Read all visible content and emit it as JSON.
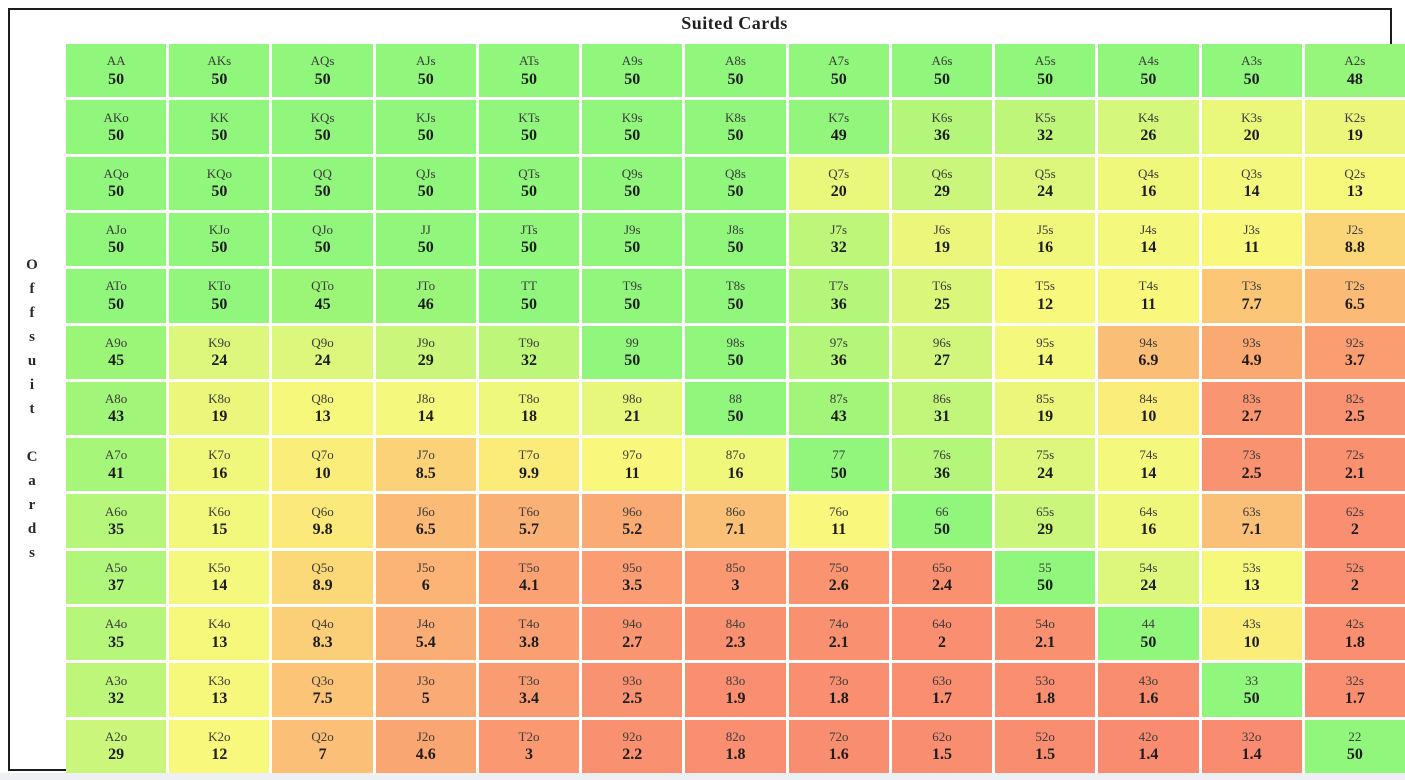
{
  "header": {
    "title": "Suited Cards"
  },
  "side": {
    "label": "Offsuit Cards"
  },
  "text_colors": {
    "hand_label": "#3c3c3c",
    "hand_value": "#1c1c1c",
    "title": "#1f1f1f"
  },
  "chart_data": {
    "type": "heatmap",
    "title": "Suited Cards",
    "row_axis_label": "Offsuit Cards",
    "layout_note": "13x13 poker hand matrix; suited hands upper-right, offsuit lower-left, pairs on diagonal; each cell shows hand name and value",
    "hands": [
      [
        "AA",
        "AKs",
        "AQs",
        "AJs",
        "ATs",
        "A9s",
        "A8s",
        "A7s",
        "A6s",
        "A5s",
        "A4s",
        "A3s",
        "A2s"
      ],
      [
        "AKo",
        "KK",
        "KQs",
        "KJs",
        "KTs",
        "K9s",
        "K8s",
        "K7s",
        "K6s",
        "K5s",
        "K4s",
        "K3s",
        "K2s"
      ],
      [
        "AQo",
        "KQo",
        "QQ",
        "QJs",
        "QTs",
        "Q9s",
        "Q8s",
        "Q7s",
        "Q6s",
        "Q5s",
        "Q4s",
        "Q3s",
        "Q2s"
      ],
      [
        "AJo",
        "KJo",
        "QJo",
        "JJ",
        "JTs",
        "J9s",
        "J8s",
        "J7s",
        "J6s",
        "J5s",
        "J4s",
        "J3s",
        "J2s"
      ],
      [
        "ATo",
        "KTo",
        "QTo",
        "JTo",
        "TT",
        "T9s",
        "T8s",
        "T7s",
        "T6s",
        "T5s",
        "T4s",
        "T3s",
        "T2s"
      ],
      [
        "A9o",
        "K9o",
        "Q9o",
        "J9o",
        "T9o",
        "99",
        "98s",
        "97s",
        "96s",
        "95s",
        "94s",
        "93s",
        "92s"
      ],
      [
        "A8o",
        "K8o",
        "Q8o",
        "J8o",
        "T8o",
        "98o",
        "88",
        "87s",
        "86s",
        "85s",
        "84s",
        "83s",
        "82s"
      ],
      [
        "A7o",
        "K7o",
        "Q7o",
        "J7o",
        "T7o",
        "97o",
        "87o",
        "77",
        "76s",
        "75s",
        "74s",
        "73s",
        "72s"
      ],
      [
        "A6o",
        "K6o",
        "Q6o",
        "J6o",
        "T6o",
        "96o",
        "86o",
        "76o",
        "66",
        "65s",
        "64s",
        "63s",
        "62s"
      ],
      [
        "A5o",
        "K5o",
        "Q5o",
        "J5o",
        "T5o",
        "95o",
        "85o",
        "75o",
        "65o",
        "55",
        "54s",
        "53s",
        "52s"
      ],
      [
        "A4o",
        "K4o",
        "Q4o",
        "J4o",
        "T4o",
        "94o",
        "84o",
        "74o",
        "64o",
        "54o",
        "44",
        "43s",
        "42s"
      ],
      [
        "A3o",
        "K3o",
        "Q3o",
        "J3o",
        "T3o",
        "93o",
        "83o",
        "73o",
        "63o",
        "53o",
        "43o",
        "33",
        "32s"
      ],
      [
        "A2o",
        "K2o",
        "Q2o",
        "J2o",
        "T2o",
        "92o",
        "82o",
        "72o",
        "62o",
        "52o",
        "42o",
        "32o",
        "22"
      ]
    ],
    "values": [
      [
        50,
        50,
        50,
        50,
        50,
        50,
        50,
        50,
        50,
        50,
        50,
        50,
        48
      ],
      [
        50,
        50,
        50,
        50,
        50,
        50,
        50,
        49,
        36,
        32,
        26,
        20,
        19
      ],
      [
        50,
        50,
        50,
        50,
        50,
        50,
        50,
        20,
        29,
        24,
        16,
        14,
        13
      ],
      [
        50,
        50,
        50,
        50,
        50,
        50,
        50,
        32,
        19,
        16,
        14,
        11,
        8.8
      ],
      [
        50,
        50,
        45,
        46,
        50,
        50,
        50,
        36,
        25,
        12,
        11,
        7.7,
        6.5
      ],
      [
        45,
        24,
        24,
        29,
        32,
        50,
        50,
        36,
        27,
        14,
        6.9,
        4.9,
        3.7
      ],
      [
        43,
        19,
        13,
        14,
        18,
        21,
        50,
        43,
        31,
        19,
        10,
        2.7,
        2.5
      ],
      [
        41,
        16,
        10,
        8.5,
        9.9,
        11,
        16,
        50,
        36,
        24,
        14,
        2.5,
        2.1
      ],
      [
        35,
        15,
        9.8,
        6.5,
        5.7,
        5.2,
        7.1,
        11,
        50,
        29,
        16,
        7.1,
        2
      ],
      [
        37,
        14,
        8.9,
        6,
        4.1,
        3.5,
        3,
        2.6,
        2.4,
        50,
        24,
        13,
        2
      ],
      [
        35,
        13,
        8.3,
        5.4,
        3.8,
        2.7,
        2.3,
        2.1,
        2,
        2.1,
        50,
        10,
        1.8
      ],
      [
        32,
        13,
        7.5,
        5,
        3.4,
        2.5,
        1.9,
        1.8,
        1.7,
        1.8,
        1.6,
        50,
        1.7
      ],
      [
        29,
        12,
        7,
        4.6,
        3,
        2.2,
        1.8,
        1.6,
        1.5,
        1.5,
        1.4,
        1.4,
        50
      ]
    ],
    "color_scale": [
      {
        "v": 1.4,
        "hex": "#f98c70"
      },
      {
        "v": 2.0,
        "hex": "#f98f70"
      },
      {
        "v": 2.5,
        "hex": "#f99270"
      },
      {
        "v": 3.0,
        "hex": "#fa9971"
      },
      {
        "v": 3.8,
        "hex": "#fa9f72"
      },
      {
        "v": 4.6,
        "hex": "#faa673"
      },
      {
        "v": 5.4,
        "hex": "#faad74"
      },
      {
        "v": 6.5,
        "hex": "#fbba76"
      },
      {
        "v": 7.5,
        "hex": "#fbc477"
      },
      {
        "v": 8.8,
        "hex": "#fbd678"
      },
      {
        "v": 9.9,
        "hex": "#fbec7a"
      },
      {
        "v": 11,
        "hex": "#faf87c"
      },
      {
        "v": 13,
        "hex": "#f6f87c"
      },
      {
        "v": 16,
        "hex": "#f0f87c"
      },
      {
        "v": 20,
        "hex": "#e9f77b"
      },
      {
        "v": 24,
        "hex": "#dcf77b"
      },
      {
        "v": 29,
        "hex": "#caf67b"
      },
      {
        "v": 32,
        "hex": "#bef67a"
      },
      {
        "v": 36,
        "hex": "#b3f67a"
      },
      {
        "v": 41,
        "hex": "#a6f679"
      },
      {
        "v": 45,
        "hex": "#9bf678"
      },
      {
        "v": 48,
        "hex": "#96f67b"
      },
      {
        "v": 50,
        "hex": "#90f67c"
      }
    ]
  }
}
